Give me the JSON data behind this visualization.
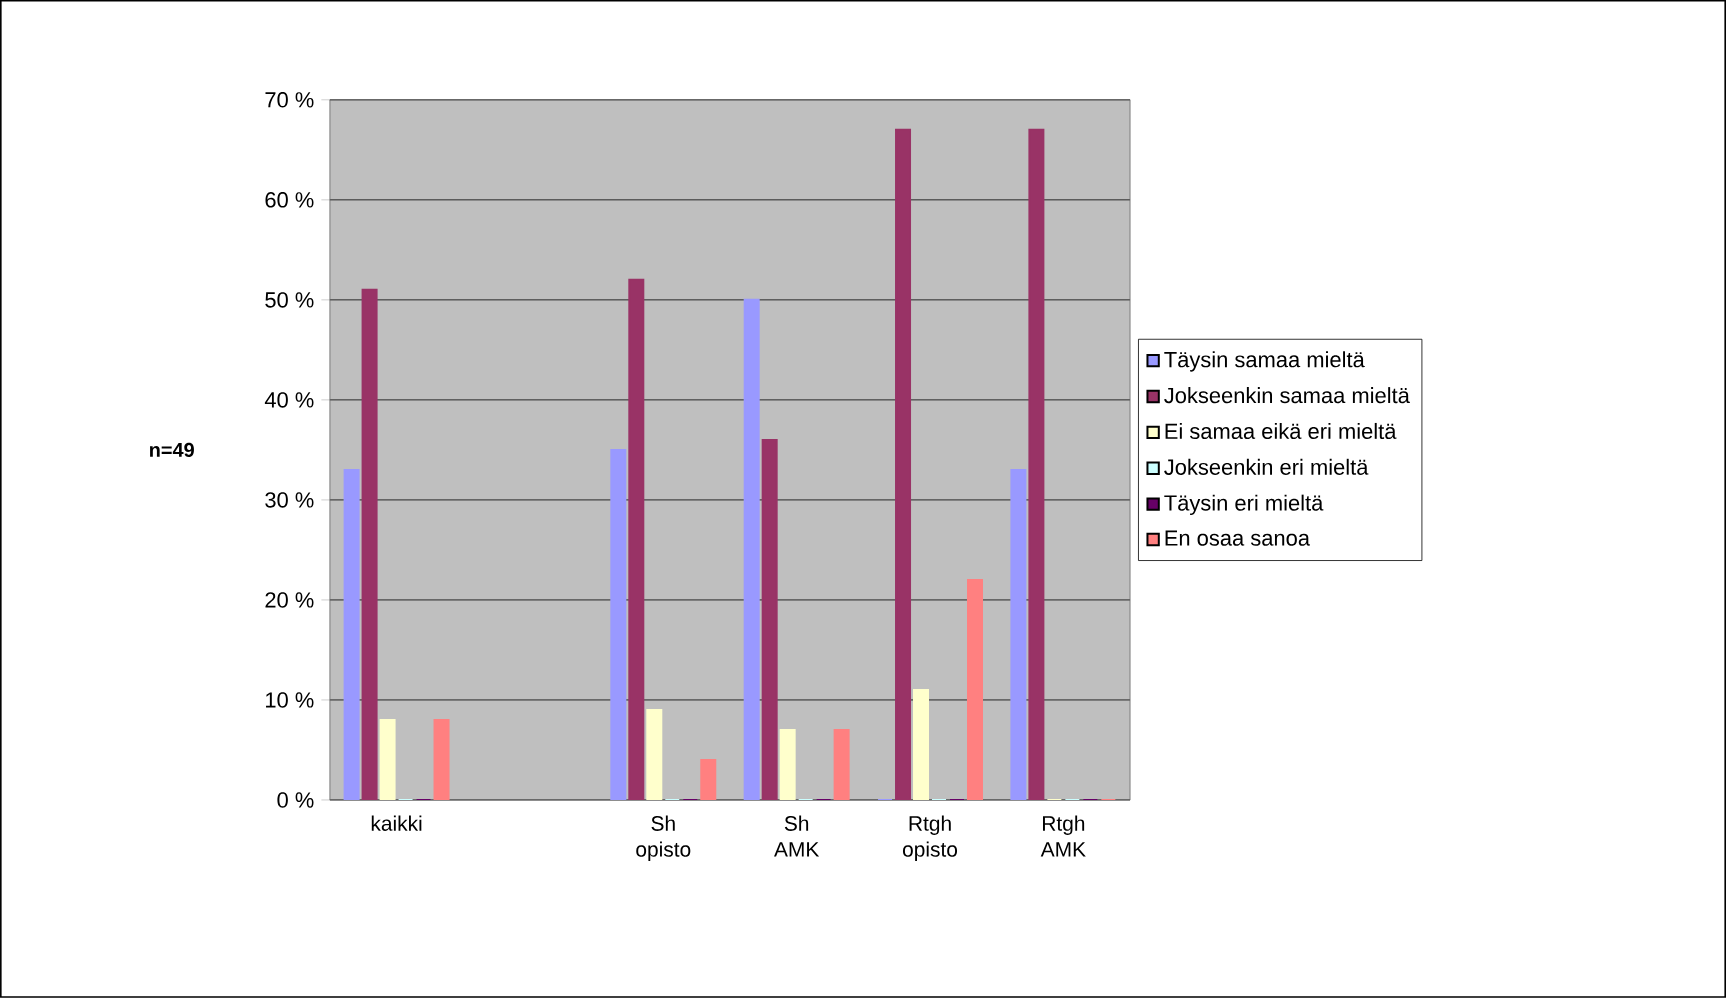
{
  "chart_data": {
    "type": "bar",
    "ylabel": "n=49",
    "categories": [
      "kaikki",
      null,
      "Sh opisto",
      "Sh AMK",
      "Rtgh opisto",
      "Rtgh AMK"
    ],
    "series": [
      {
        "name": "Täysin samaa mieltä",
        "color": "#9999ff",
        "values": [
          33,
          null,
          35,
          50,
          0,
          33
        ]
      },
      {
        "name": "Jokseenkin samaa mieltä",
        "color": "#993366",
        "values": [
          51,
          null,
          52,
          36,
          67,
          67
        ]
      },
      {
        "name": "Ei samaa eikä eri mieltä",
        "color": "#ffffcc",
        "values": [
          8,
          null,
          9,
          7,
          11,
          0
        ]
      },
      {
        "name": "Jokseenkin eri mieltä",
        "color": "#ccffff",
        "values": [
          0,
          null,
          0,
          0,
          0,
          0
        ]
      },
      {
        "name": "Täysin eri mieltä",
        "color": "#660066",
        "values": [
          0,
          null,
          0,
          0,
          0,
          0
        ]
      },
      {
        "name": "En osaa sanoa",
        "color": "#ff8080",
        "values": [
          8,
          null,
          4,
          7,
          22,
          0
        ]
      }
    ],
    "ylim": [
      0,
      70
    ],
    "yticks": [
      {
        "value": 0,
        "label": "0 %"
      },
      {
        "value": 10,
        "label": "10 %"
      },
      {
        "value": 20,
        "label": "20 %"
      },
      {
        "value": 30,
        "label": "30 %"
      },
      {
        "value": 40,
        "label": "40 %"
      },
      {
        "value": 50,
        "label": "50 %"
      },
      {
        "value": 60,
        "label": "60 %"
      },
      {
        "value": 70,
        "label": "70 %"
      }
    ],
    "grid": "y",
    "legend": "right"
  }
}
